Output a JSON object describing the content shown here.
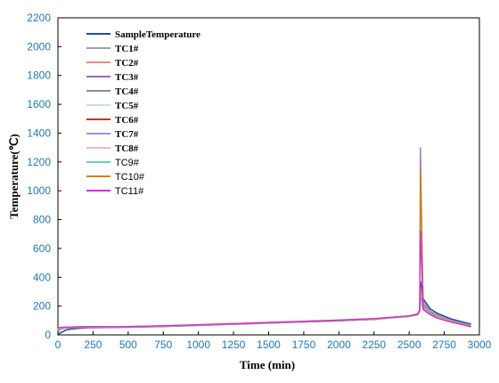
{
  "chart_data": {
    "type": "line",
    "xlabel": "Time (min)",
    "ylabel": "Temperature(℃)",
    "xlim": [
      0,
      3000
    ],
    "ylim": [
      0,
      2200
    ],
    "xticks": [
      0,
      250,
      500,
      750,
      1000,
      1250,
      1500,
      1750,
      2000,
      2250,
      2500,
      2750,
      3000
    ],
    "yticks": [
      0,
      200,
      400,
      600,
      800,
      1000,
      1200,
      1400,
      1600,
      1800,
      2000,
      2200
    ],
    "grid": false,
    "legend_position": "top-left",
    "series": [
      {
        "name": "SampleTemperature",
        "color": "#1f4e9a",
        "bold": true,
        "x": [
          0,
          30,
          60,
          100,
          200,
          400,
          600,
          800,
          1000,
          1250,
          1500,
          1750,
          2000,
          2250,
          2500,
          2560,
          2575,
          2580,
          2600,
          2650,
          2700,
          2800,
          2900,
          2940
        ],
        "y": [
          5,
          20,
          35,
          42,
          50,
          52,
          55,
          60,
          66,
          74,
          82,
          90,
          98,
          108,
          130,
          145,
          170,
          370,
          250,
          180,
          150,
          110,
          85,
          75
        ]
      },
      {
        "name": "TC1#",
        "color": "#9aa3a8",
        "bold": true,
        "x": [
          0,
          20,
          60,
          200,
          400,
          600,
          800,
          1000,
          1250,
          1500,
          1750,
          2000,
          2250,
          2500,
          2560,
          2575,
          2580,
          2600,
          2650,
          2700,
          2800,
          2900,
          2940
        ],
        "y": [
          20,
          40,
          48,
          52,
          52,
          55,
          60,
          66,
          74,
          82,
          90,
          98,
          108,
          128,
          140,
          165,
          330,
          230,
          165,
          140,
          100,
          78,
          68
        ]
      },
      {
        "name": "TC2#",
        "color": "#e58a8a",
        "bold": true,
        "x": [
          0,
          20,
          60,
          200,
          400,
          600,
          800,
          1000,
          1250,
          1500,
          1750,
          2000,
          2250,
          2500,
          2560,
          2575,
          2580,
          2600,
          2650,
          2700,
          2800,
          2900,
          2940
        ],
        "y": [
          30,
          45,
          50,
          55,
          54,
          57,
          62,
          68,
          75,
          83,
          91,
          99,
          109,
          128,
          140,
          165,
          300,
          215,
          160,
          135,
          98,
          76,
          66
        ]
      },
      {
        "name": "TC3#",
        "color": "#9b6bb5",
        "bold": true,
        "x": [
          0,
          20,
          60,
          200,
          400,
          600,
          800,
          1000,
          1250,
          1500,
          1750,
          2000,
          2250,
          2500,
          2560,
          2575,
          2580,
          2600,
          2650,
          2700,
          2800,
          2900,
          2940
        ],
        "y": [
          35,
          48,
          50,
          54,
          53,
          56,
          61,
          67,
          75,
          83,
          91,
          99,
          109,
          128,
          140,
          165,
          1300,
          210,
          158,
          132,
          96,
          74,
          64
        ]
      },
      {
        "name": "TC4#",
        "color": "#8c8c8c",
        "bold": true,
        "x": [
          0,
          20,
          60,
          200,
          400,
          600,
          800,
          1000,
          1250,
          1500,
          1750,
          2000,
          2250,
          2500,
          2560,
          2575,
          2580,
          2600,
          2650,
          2700,
          2800,
          2900,
          2940
        ],
        "y": [
          32,
          46,
          50,
          54,
          53,
          56,
          61,
          67,
          75,
          83,
          91,
          99,
          109,
          128,
          140,
          165,
          280,
          205,
          155,
          130,
          95,
          73,
          63
        ]
      },
      {
        "name": "TC5#",
        "color": "#c8dcef",
        "bold": true,
        "x": [
          0,
          20,
          60,
          200,
          400,
          600,
          800,
          1000,
          1250,
          1500,
          1750,
          2000,
          2250,
          2500,
          2560,
          2575,
          2580,
          2600,
          2650,
          2700,
          2800,
          2900,
          2940
        ],
        "y": [
          36,
          48,
          51,
          55,
          54,
          57,
          62,
          68,
          76,
          84,
          92,
          100,
          110,
          129,
          141,
          166,
          270,
          200,
          152,
          128,
          94,
          72,
          62
        ]
      },
      {
        "name": "TC6#",
        "color": "#c0392b",
        "bold": true,
        "x": [
          0,
          20,
          60,
          200,
          400,
          600,
          800,
          1000,
          1250,
          1500,
          1750,
          2000,
          2250,
          2500,
          2560,
          2575,
          2580,
          2600,
          2650,
          2700,
          2800,
          2900,
          2940
        ],
        "y": [
          38,
          49,
          51,
          55,
          54,
          57,
          62,
          68,
          76,
          84,
          92,
          100,
          110,
          129,
          141,
          166,
          260,
          195,
          150,
          126,
          93,
          71,
          61
        ]
      },
      {
        "name": "TC7#",
        "color": "#a891d8",
        "bold": true,
        "x": [
          0,
          20,
          60,
          200,
          400,
          600,
          800,
          1000,
          1250,
          1500,
          1750,
          2000,
          2250,
          2500,
          2560,
          2575,
          2580,
          2600,
          2650,
          2700,
          2800,
          2900,
          2940
        ],
        "y": [
          40,
          50,
          52,
          56,
          55,
          58,
          63,
          69,
          77,
          85,
          93,
          101,
          111,
          130,
          142,
          167,
          250,
          190,
          148,
          124,
          92,
          70,
          60
        ]
      },
      {
        "name": "TC8#",
        "color": "#f2b6cf",
        "bold": true,
        "x": [
          0,
          20,
          60,
          200,
          400,
          600,
          800,
          1000,
          1250,
          1500,
          1750,
          2000,
          2250,
          2500,
          2560,
          2575,
          2580,
          2600,
          2650,
          2700,
          2800,
          2900,
          2940
        ],
        "y": [
          42,
          50,
          52,
          56,
          55,
          58,
          63,
          69,
          77,
          85,
          93,
          101,
          111,
          130,
          142,
          167,
          240,
          185,
          146,
          122,
          91,
          69,
          59
        ]
      },
      {
        "name": "TC9#",
        "color": "#6fcdb5",
        "bold": false,
        "x": [
          0,
          20,
          60,
          200,
          400,
          600,
          800,
          1000,
          1250,
          1500,
          1750,
          2000,
          2250,
          2500,
          2560,
          2575,
          2580,
          2600,
          2650,
          2700,
          2800,
          2900,
          2940
        ],
        "y": [
          44,
          51,
          53,
          57,
          56,
          59,
          64,
          70,
          78,
          86,
          94,
          102,
          112,
          131,
          143,
          168,
          230,
          180,
          144,
          120,
          90,
          68,
          58
        ]
      },
      {
        "name": "TC10#",
        "color": "#c8860a",
        "bold": false,
        "x": [
          0,
          20,
          60,
          200,
          400,
          600,
          800,
          1000,
          1250,
          1500,
          1750,
          2000,
          2250,
          2500,
          2560,
          2575,
          2580,
          2600,
          2650,
          2700,
          2800,
          2900,
          2940
        ],
        "y": [
          46,
          52,
          53,
          57,
          56,
          59,
          64,
          70,
          78,
          86,
          94,
          102,
          112,
          131,
          143,
          168,
          1140,
          178,
          142,
          118,
          89,
          67,
          57
        ]
      },
      {
        "name": "TC11#",
        "color": "#d62ad6",
        "bold": false,
        "x": [
          0,
          20,
          60,
          200,
          400,
          600,
          800,
          1000,
          1250,
          1500,
          1750,
          2000,
          2250,
          2500,
          2560,
          2575,
          2580,
          2600,
          2650,
          2700,
          2800,
          2900,
          2940
        ],
        "y": [
          48,
          52,
          54,
          58,
          57,
          60,
          65,
          71,
          79,
          87,
          95,
          103,
          113,
          132,
          144,
          169,
          720,
          175,
          140,
          116,
          88,
          66,
          56
        ]
      }
    ]
  }
}
